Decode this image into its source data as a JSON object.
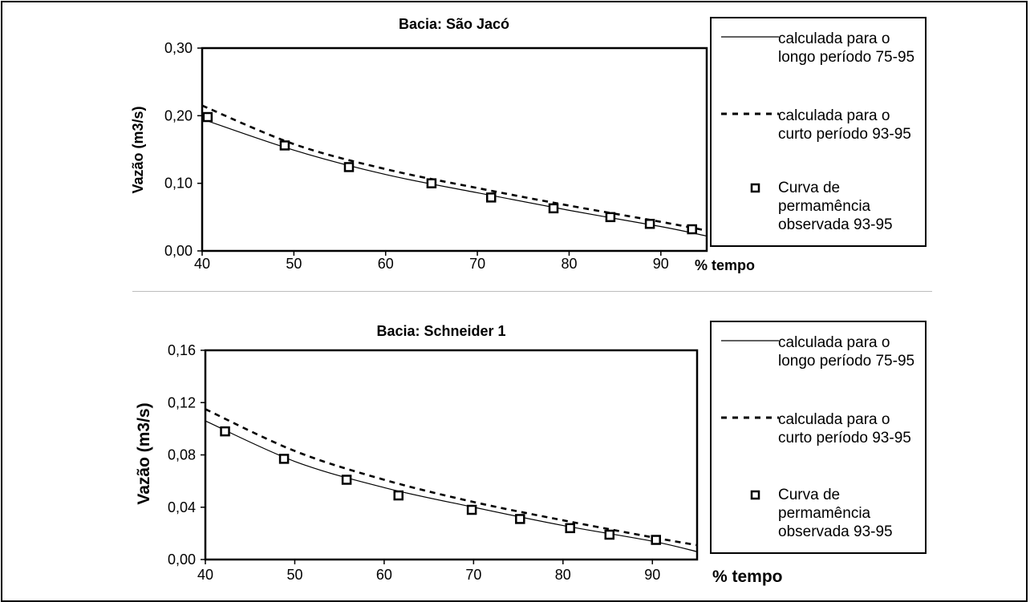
{
  "chart_data": [
    {
      "type": "line",
      "title": "Bacia: São Jacó",
      "xlabel": "% tempo",
      "ylabel": "Vazão (m3/s)",
      "xlim": [
        40,
        95
      ],
      "ylim": [
        0,
        0.3
      ],
      "xticks": [
        40,
        50,
        60,
        70,
        80,
        90
      ],
      "xtick_labels": [
        "40",
        "50",
        "60",
        "70",
        "80",
        "90"
      ],
      "yticks": [
        0,
        0.1,
        0.2,
        0.3
      ],
      "ytick_labels": [
        "0,00",
        "0,10",
        "0,20",
        "0,30"
      ],
      "legend_position": "right",
      "series": [
        {
          "name": "calculada para o longo período 75-95",
          "style": "solid",
          "x": [
            40,
            50,
            60,
            70,
            80,
            90,
            95
          ],
          "y": [
            0.195,
            0.149,
            0.113,
            0.086,
            0.06,
            0.036,
            0.022
          ]
        },
        {
          "name": "calculada para o curto período 93-95",
          "style": "dashed",
          "x": [
            40,
            50,
            60,
            70,
            80,
            90,
            95
          ],
          "y": [
            0.215,
            0.158,
            0.121,
            0.093,
            0.067,
            0.043,
            0.03
          ]
        },
        {
          "name": "Curva de permamência observada 93-95",
          "style": "marker",
          "x": [
            40.6,
            49,
            56,
            65,
            71.5,
            78.3,
            84.5,
            88.8,
            93.4
          ],
          "y": [
            0.198,
            0.156,
            0.124,
            0.1,
            0.079,
            0.063,
            0.05,
            0.04,
            0.032
          ]
        }
      ]
    },
    {
      "type": "line",
      "title": "Bacia: Schneider 1",
      "xlabel": "% tempo",
      "ylabel": "Vazão (m3/s)",
      "xlim": [
        40,
        95
      ],
      "ylim": [
        0,
        0.16
      ],
      "xticks": [
        40,
        50,
        60,
        70,
        80,
        90
      ],
      "xtick_labels": [
        "40",
        "50",
        "60",
        "70",
        "80",
        "90"
      ],
      "yticks": [
        0,
        0.04,
        0.08,
        0.12,
        0.16
      ],
      "ytick_labels": [
        "0,00",
        "0,04",
        "0,08",
        "0,12",
        "0,16"
      ],
      "legend_position": "right",
      "series": [
        {
          "name": "calculada para o longo período 75-95",
          "style": "solid",
          "x": [
            40,
            50,
            60,
            70,
            80,
            90,
            95
          ],
          "y": [
            0.106,
            0.075,
            0.055,
            0.04,
            0.026,
            0.014,
            0.006
          ]
        },
        {
          "name": "calculada para o curto período 93-95",
          "style": "dashed",
          "x": [
            40,
            50,
            60,
            70,
            80,
            90,
            95
          ],
          "y": [
            0.115,
            0.083,
            0.061,
            0.044,
            0.03,
            0.017,
            0.011
          ]
        },
        {
          "name": "Curva de permamência observada 93-95",
          "style": "marker",
          "x": [
            42.2,
            48.8,
            55.8,
            61.6,
            69.8,
            75.2,
            80.8,
            85.2,
            90.4
          ],
          "y": [
            0.098,
            0.077,
            0.061,
            0.049,
            0.038,
            0.031,
            0.024,
            0.019,
            0.015
          ]
        }
      ]
    }
  ]
}
